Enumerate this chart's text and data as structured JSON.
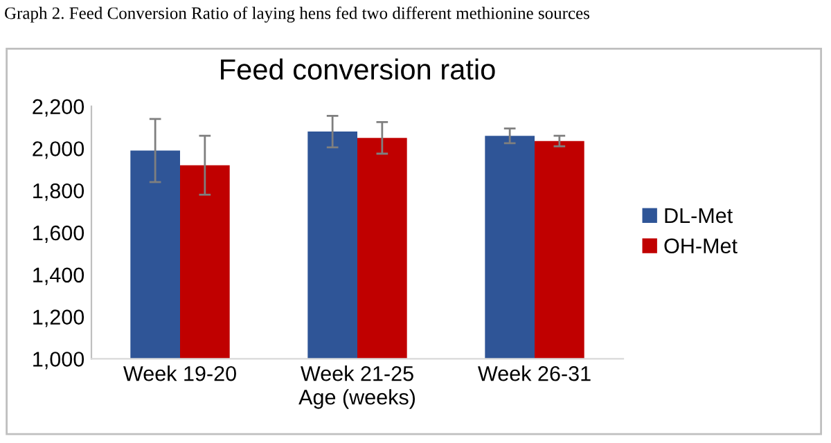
{
  "chart_data": {
    "type": "bar",
    "title": "Feed conversion ratio",
    "xlabel": "Age (weeks)",
    "annotations": [
      "Graph 2. Feed Conversion Ratio of laying hens fed two different methionine sources"
    ],
    "categories": [
      "Week 19-20",
      "Week 21-25",
      "Week 26-31"
    ],
    "series": [
      {
        "name": "DL-Met",
        "color": "#2f5597",
        "values": [
          1990,
          2080,
          2060
        ],
        "errors": [
          150,
          75,
          35
        ]
      },
      {
        "name": "OH-Met",
        "color": "#c00000",
        "values": [
          1920,
          2050,
          2035
        ],
        "errors": [
          140,
          75,
          25
        ]
      }
    ],
    "ylim": [
      1000,
      2200
    ],
    "yticks": [
      {
        "value": 1000,
        "label": "1,000"
      },
      {
        "value": 1200,
        "label": "1,200"
      },
      {
        "value": 1400,
        "label": "1,400"
      },
      {
        "value": 1600,
        "label": "1,600"
      },
      {
        "value": 1800,
        "label": "1,800"
      },
      {
        "value": 2000,
        "label": "2,000"
      },
      {
        "value": 2200,
        "label": "2,200"
      }
    ],
    "grid": false,
    "legend": "right"
  }
}
